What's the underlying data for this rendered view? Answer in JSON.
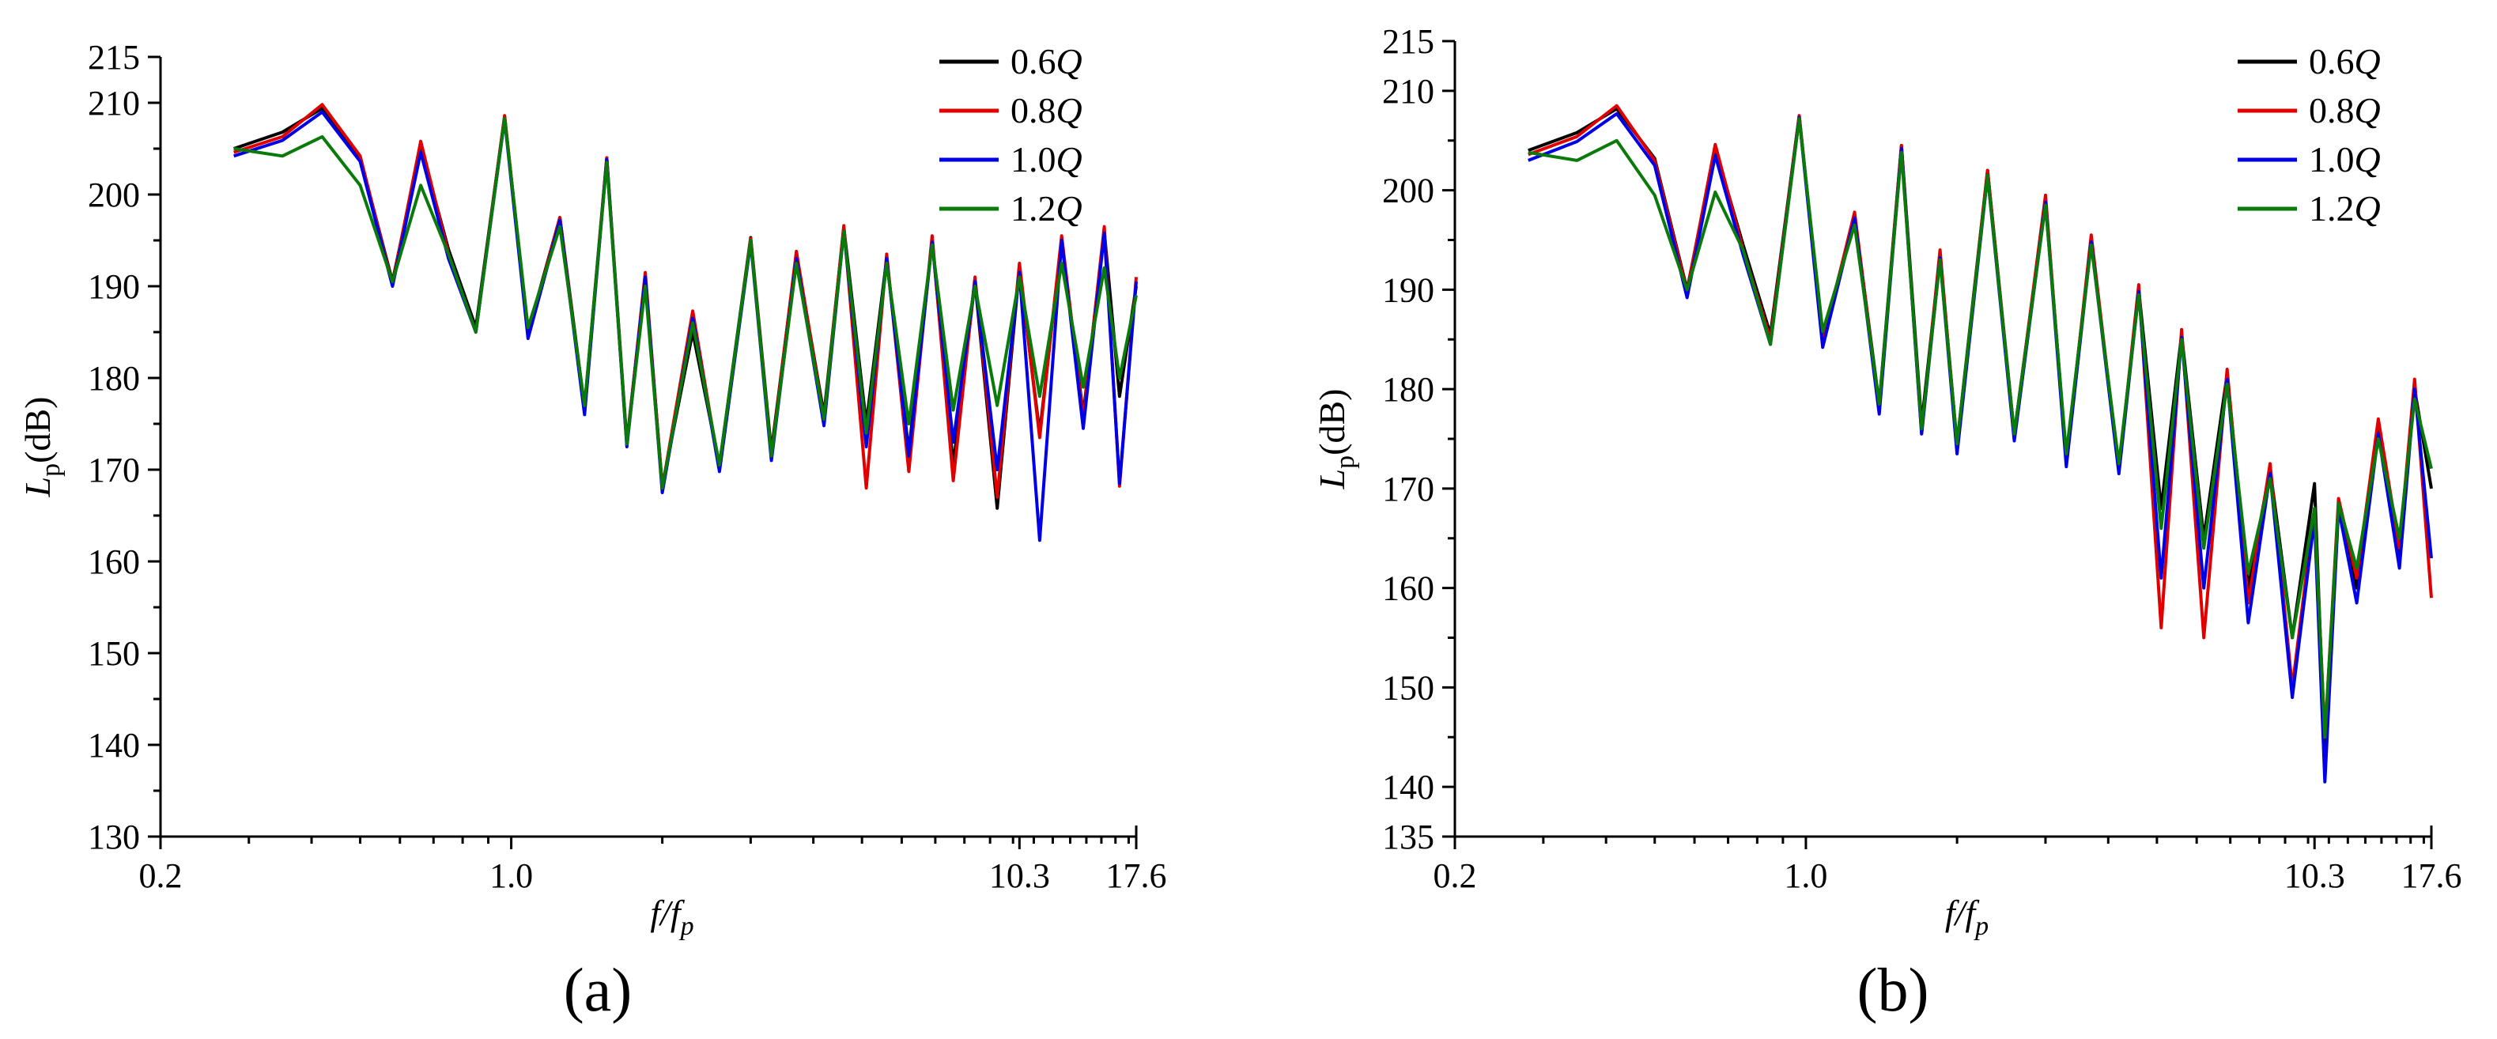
{
  "chart_data": [
    {
      "type": "line",
      "panel_label": "(a)",
      "xlabel": "f/fp",
      "ylabel": "Lp (dB)",
      "xscale": "log",
      "xlim": [
        0.2,
        17.6
      ],
      "ylim": [
        130,
        215
      ],
      "x_ticks": [
        "0.2",
        "1.0",
        "10.3",
        "17.6"
      ],
      "y_ticks": [
        130,
        140,
        150,
        160,
        170,
        180,
        190,
        200,
        210,
        215
      ],
      "legend": "top-right",
      "series": [
        {
          "name": "0.6Q",
          "color": "#000000",
          "x": [
            0.28,
            0.35,
            0.42,
            0.5,
            0.58,
            0.66,
            0.75,
            0.85,
            0.97,
            1.08,
            1.25,
            1.4,
            1.55,
            1.7,
            1.85,
            2.0,
            2.3,
            2.6,
            3.0,
            3.3,
            3.7,
            4.2,
            4.6,
            5.1,
            5.6,
            6.2,
            6.9,
            7.6,
            8.4,
            9.3,
            10.3,
            11.3,
            12.5,
            13.8,
            15.2,
            16.3,
            17.6
          ],
          "y": [
            205,
            206.8,
            209.4,
            204,
            190.5,
            205.2,
            194,
            185.5,
            208.5,
            185,
            197.5,
            176.8,
            204,
            173,
            191,
            168.2,
            185,
            170.5,
            195.3,
            172,
            193.5,
            176,
            196.4,
            175,
            193,
            172,
            195,
            170.5,
            190.5,
            165.8,
            192,
            174,
            195,
            176,
            196,
            178,
            190
          ]
        },
        {
          "name": "0.8Q",
          "color": "#e00000",
          "x": [
            0.28,
            0.35,
            0.42,
            0.5,
            0.58,
            0.66,
            0.75,
            0.85,
            0.97,
            1.08,
            1.25,
            1.4,
            1.55,
            1.7,
            1.85,
            2.0,
            2.3,
            2.6,
            3.0,
            3.3,
            3.7,
            4.2,
            4.6,
            5.1,
            5.6,
            6.2,
            6.9,
            7.6,
            8.4,
            9.3,
            10.3,
            11.3,
            12.5,
            13.8,
            15.2,
            16.3,
            17.6
          ],
          "y": [
            204.6,
            206.3,
            209.8,
            204.2,
            190.2,
            205.8,
            193.5,
            185,
            208.6,
            184.6,
            197.5,
            176.2,
            204,
            172.7,
            191.5,
            168,
            187.3,
            170,
            195.2,
            171.5,
            193.8,
            175.5,
            196.6,
            168,
            193.5,
            169.8,
            195.5,
            168.8,
            191,
            167,
            192.5,
            173.5,
            195.5,
            175.5,
            196.5,
            168.2,
            191
          ]
        },
        {
          "name": "1.0Q",
          "color": "#0000e6",
          "x": [
            0.28,
            0.35,
            0.42,
            0.5,
            0.58,
            0.66,
            0.75,
            0.85,
            0.97,
            1.08,
            1.25,
            1.4,
            1.55,
            1.7,
            1.85,
            2.0,
            2.3,
            2.6,
            3.0,
            3.3,
            3.7,
            4.2,
            4.6,
            5.1,
            5.6,
            6.2,
            6.9,
            7.6,
            8.4,
            9.3,
            10.3,
            11.3,
            12.5,
            13.8,
            15.2,
            16.3,
            17.6
          ],
          "y": [
            204.2,
            205.9,
            209,
            203.6,
            190,
            204.6,
            193,
            185,
            208.2,
            184.3,
            197.2,
            176,
            203.8,
            172.5,
            191,
            167.5,
            186.5,
            169.8,
            194.8,
            171,
            193,
            174.8,
            196,
            172.5,
            193,
            171.5,
            194.8,
            173,
            190.5,
            170,
            191.5,
            162.3,
            195,
            174.5,
            195.8,
            168.5,
            190.5
          ]
        },
        {
          "name": "1.2Q",
          "color": "#0a7a0a",
          "x": [
            0.28,
            0.35,
            0.42,
            0.5,
            0.58,
            0.66,
            0.75,
            0.85,
            0.97,
            1.08,
            1.25,
            1.4,
            1.55,
            1.7,
            1.85,
            2.0,
            2.3,
            2.6,
            3.0,
            3.3,
            3.7,
            4.2,
            4.6,
            5.1,
            5.6,
            6.2,
            6.9,
            7.6,
            8.4,
            9.3,
            10.3,
            11.3,
            12.5,
            13.8,
            15.2,
            16.3,
            17.6
          ],
          "y": [
            205,
            204.2,
            206.3,
            201,
            190.5,
            201,
            193.5,
            185,
            208.3,
            185.5,
            196.5,
            177,
            203.5,
            172.8,
            190,
            168,
            186,
            170.5,
            195,
            171.5,
            192.5,
            175.5,
            196,
            174,
            192.5,
            175,
            194.5,
            176.5,
            190,
            177,
            191,
            178,
            192.5,
            179,
            192,
            180,
            189
          ]
        }
      ]
    },
    {
      "type": "line",
      "panel_label": "(b)",
      "xlabel": "f/fp",
      "ylabel": "Lp (dB)",
      "xscale": "log",
      "xlim": [
        0.2,
        17.6
      ],
      "ylim": [
        135,
        215
      ],
      "x_ticks": [
        "0.2",
        "1.0",
        "10.3",
        "17.6"
      ],
      "y_ticks": [
        135,
        140,
        150,
        160,
        170,
        180,
        190,
        200,
        210,
        215
      ],
      "legend": "top-right",
      "series": [
        {
          "name": "0.6Q",
          "color": "#000000",
          "x": [
            0.28,
            0.35,
            0.42,
            0.5,
            0.58,
            0.66,
            0.75,
            0.85,
            0.97,
            1.08,
            1.25,
            1.4,
            1.55,
            1.7,
            1.85,
            2.0,
            2.3,
            2.6,
            3.0,
            3.3,
            3.7,
            4.2,
            4.6,
            5.1,
            5.6,
            6.2,
            6.9,
            7.6,
            8.4,
            9.3,
            10.3,
            10.8,
            11.5,
            12.5,
            13.8,
            15.2,
            16.3,
            17.6
          ],
          "y": [
            204,
            205.8,
            208.2,
            203.2,
            190,
            204.2,
            194.5,
            185.5,
            207.5,
            185,
            197.5,
            178.5,
            204.5,
            176.5,
            193.5,
            174.5,
            202,
            175.5,
            199,
            173,
            195,
            172,
            190,
            168,
            185.5,
            165,
            181.5,
            160,
            172,
            155,
            170.5,
            143,
            168.5,
            160,
            176,
            163,
            180,
            170
          ]
        },
        {
          "name": "0.8Q",
          "color": "#e00000",
          "x": [
            0.28,
            0.35,
            0.42,
            0.5,
            0.58,
            0.66,
            0.75,
            0.85,
            0.97,
            1.08,
            1.25,
            1.4,
            1.55,
            1.7,
            1.85,
            2.0,
            2.3,
            2.6,
            3.0,
            3.3,
            3.7,
            4.2,
            4.6,
            5.1,
            5.6,
            6.2,
            6.9,
            7.6,
            8.4,
            9.3,
            10.3,
            10.8,
            11.5,
            12.5,
            13.8,
            15.2,
            16.3,
            17.6
          ],
          "y": [
            203.6,
            205.4,
            208.5,
            203,
            189.8,
            204.6,
            194,
            185,
            207.5,
            184.6,
            197.8,
            178,
            204.5,
            175.5,
            194,
            174,
            202,
            175.2,
            199.5,
            172.5,
            195.5,
            171.8,
            190.5,
            156,
            186,
            155,
            182,
            158.5,
            172.5,
            150,
            168,
            145,
            169,
            161,
            177,
            164,
            181,
            159
          ]
        },
        {
          "name": "1.0Q",
          "color": "#0000e6",
          "x": [
            0.28,
            0.35,
            0.42,
            0.5,
            0.58,
            0.66,
            0.75,
            0.85,
            0.97,
            1.08,
            1.25,
            1.4,
            1.55,
            1.7,
            1.85,
            2.0,
            2.3,
            2.6,
            3.0,
            3.3,
            3.7,
            4.2,
            4.6,
            5.1,
            5.6,
            6.2,
            6.9,
            7.6,
            8.4,
            9.3,
            10.3,
            10.8,
            11.5,
            12.5,
            13.8,
            15.2,
            16.3,
            17.6
          ],
          "y": [
            203,
            204.9,
            207.7,
            202.5,
            189.2,
            203.5,
            193.5,
            184.5,
            207.3,
            184.2,
            197.2,
            177.5,
            204.2,
            175.5,
            193.2,
            173.5,
            201.5,
            174.8,
            198.8,
            172.2,
            194.8,
            171.5,
            189.8,
            161,
            185.2,
            160,
            181,
            156.5,
            171.5,
            149,
            167,
            140.5,
            168,
            158.5,
            175.5,
            162,
            180,
            163
          ]
        },
        {
          "name": "1.2Q",
          "color": "#0a7a0a",
          "x": [
            0.28,
            0.35,
            0.42,
            0.5,
            0.58,
            0.66,
            0.75,
            0.85,
            0.97,
            1.08,
            1.25,
            1.4,
            1.55,
            1.7,
            1.85,
            2.0,
            2.3,
            2.6,
            3.0,
            3.3,
            3.7,
            4.2,
            4.6,
            5.1,
            5.6,
            6.2,
            6.9,
            7.6,
            8.4,
            9.3,
            10.3,
            10.8,
            11.5,
            12.5,
            13.8,
            15.2,
            16.3,
            17.6
          ],
          "y": [
            203.8,
            203,
            205,
            199.5,
            190,
            199.8,
            194,
            184.5,
            207.2,
            185.8,
            196.5,
            178.5,
            203.8,
            176,
            193,
            174.5,
            201.5,
            175.5,
            198.5,
            173.5,
            194.5,
            172.5,
            189.5,
            166,
            185,
            164,
            180.5,
            161.5,
            171,
            155,
            168,
            145,
            168.5,
            162,
            175,
            165,
            179,
            172
          ]
        }
      ]
    }
  ],
  "figure": {
    "panel_a_label": "(a)",
    "panel_b_label": "(b)"
  }
}
